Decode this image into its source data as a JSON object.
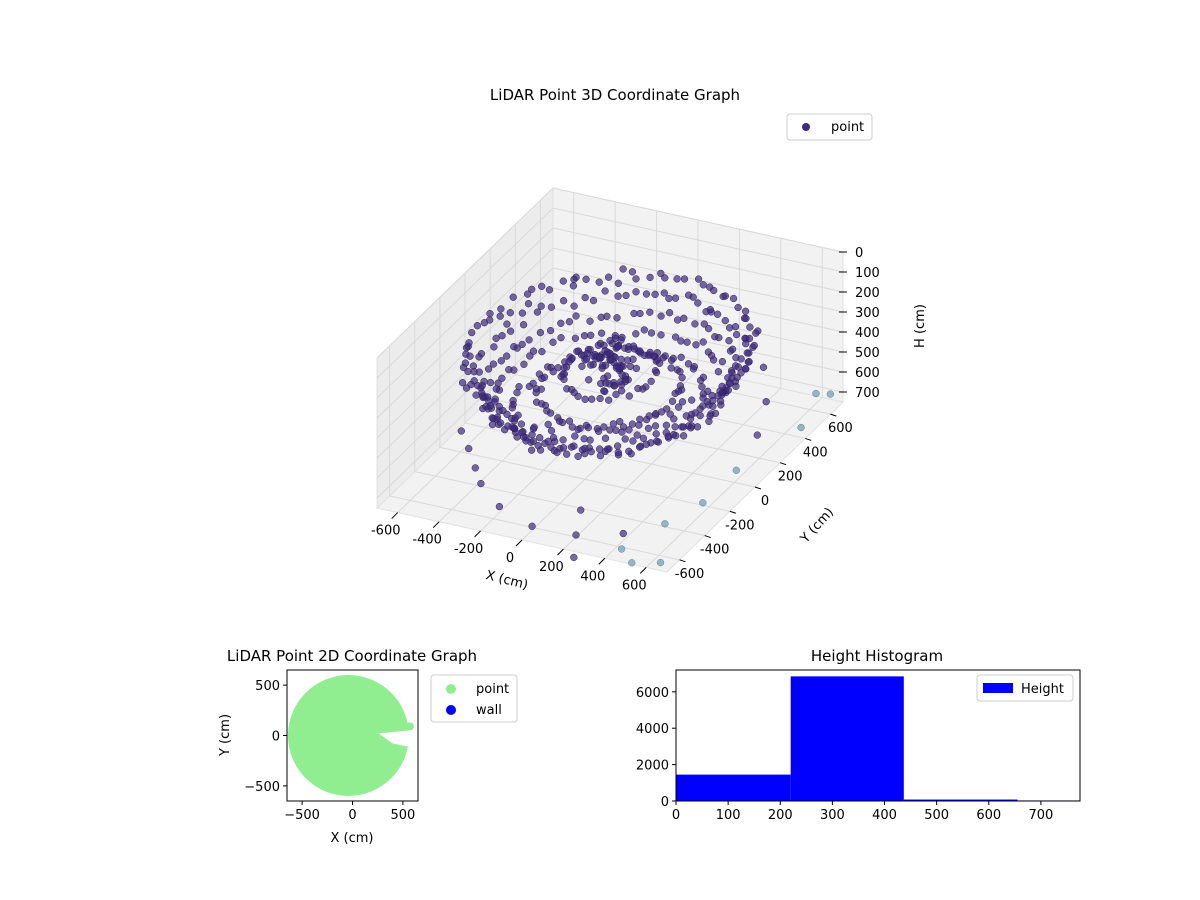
{
  "colors": {
    "point3d": "#3d2a7a",
    "point3d_light": "#6f9bb0",
    "point2d": "#90ee90",
    "wall": "#0000ff",
    "hist": "#0000ff",
    "axis": "#000000",
    "grid": "#d9d9d9",
    "pane": "#f2f2f2"
  },
  "chart_data": [
    {
      "type": "scatter",
      "title": "LiDAR Point 3D Coordinate Graph",
      "xlabel": "X (cm)",
      "ylabel": "Y (cm)",
      "zlabel": "H (cm)",
      "xlim": [
        -700,
        700
      ],
      "ylim": [
        -700,
        700
      ],
      "zlim": [
        750,
        0
      ],
      "z_inverted": true,
      "x_ticks": [
        "-600",
        "-400",
        "-200",
        "0",
        "200",
        "400",
        "600"
      ],
      "y_ticks": [
        "-600",
        "-400",
        "-200",
        "0",
        "200",
        "400",
        "600"
      ],
      "z_ticks": [
        "0",
        "100",
        "200",
        "300",
        "400",
        "500",
        "600",
        "700"
      ],
      "legend": [
        "point"
      ],
      "legend_position": "top-right",
      "grid": true,
      "series": [
        {
          "name": "point",
          "description_rings": [
            {
              "radius": 600,
              "height": 230,
              "count": 90
            },
            {
              "radius": 560,
              "height": 300,
              "count": 80
            },
            {
              "radius": 520,
              "height": 380,
              "count": 75
            },
            {
              "radius": 480,
              "height": 440,
              "count": 70
            },
            {
              "radius": 400,
              "height": 480,
              "count": 60
            },
            {
              "radius": 300,
              "height": 420,
              "count": 50
            },
            {
              "radius": 200,
              "height": 330,
              "count": 40
            }
          ],
          "center_points": [
            [
              0,
              0,
              200
            ],
            [
              20,
              -30,
              250
            ],
            [
              -40,
              20,
              300
            ],
            [
              50,
              40,
              320
            ],
            [
              -20,
              -60,
              350
            ],
            [
              80,
              -20,
              280
            ],
            [
              -70,
              -40,
              260
            ],
            [
              30,
              70,
              380
            ],
            [
              -50,
              60,
              330
            ],
            [
              10,
              10,
              420
            ]
          ],
          "scattered_points": [
            [
              -500,
              -300,
              650
            ],
            [
              -350,
              -450,
              700
            ],
            [
              -200,
              -550,
              720
            ],
            [
              0,
              -620,
              730
            ],
            [
              200,
              -600,
              740
            ],
            [
              380,
              -520,
              740
            ],
            [
              520,
              -420,
              720
            ],
            [
              600,
              -250,
              700
            ],
            [
              640,
              -50,
              650
            ],
            [
              620,
              150,
              600
            ],
            [
              560,
              320,
              550
            ],
            [
              450,
              480,
              500
            ],
            [
              300,
              580,
              450
            ],
            [
              100,
              640,
              400
            ],
            [
              -120,
              630,
              350
            ],
            [
              -300,
              560,
              300
            ],
            [
              -450,
              450,
              280
            ],
            [
              -580,
              300,
              260
            ],
            [
              -640,
              100,
              250
            ],
            [
              -620,
              -100,
              270
            ],
            [
              -560,
              -260,
              600
            ],
            [
              -420,
              -380,
              680
            ],
            [
              150,
              -480,
              700
            ],
            [
              420,
              -600,
              760
            ],
            [
              620,
              -620,
              770
            ],
            [
              680,
              400,
              700
            ],
            [
              700,
              600,
              650
            ],
            [
              600,
              650,
              700
            ],
            [
              500,
              -650,
              780
            ],
            [
              250,
              -700,
              780
            ]
          ]
        }
      ]
    },
    {
      "type": "scatter",
      "title": "LiDAR Point 2D Coordinate Graph",
      "xlabel": "X (cm)",
      "ylabel": "Y (cm)",
      "xlim": [
        -650,
        650
      ],
      "ylim": [
        -650,
        650
      ],
      "x_ticks": [
        "−500",
        "0",
        "500"
      ],
      "y_ticks": [
        "500",
        "0",
        "−500"
      ],
      "legend": [
        "point",
        "wall"
      ],
      "legend_position": "outside-right",
      "series": [
        {
          "name": "point",
          "shape": "filled-disk",
          "center": [
            -40,
            0
          ],
          "radius": 600
        },
        {
          "name": "wall",
          "points": []
        }
      ]
    },
    {
      "type": "bar",
      "title": "Height Histogram",
      "xlabel": "",
      "ylabel": "",
      "xlim": [
        0,
        775
      ],
      "ylim": [
        0,
        7200
      ],
      "x_ticks": [
        "0",
        "100",
        "200",
        "300",
        "400",
        "500",
        "600",
        "700"
      ],
      "y_ticks": [
        "0",
        "2000",
        "4000",
        "6000"
      ],
      "legend": [
        "Height"
      ],
      "legend_position": "top-right",
      "bins": [
        {
          "from": 0,
          "to": 220,
          "count": 1450
        },
        {
          "from": 220,
          "to": 437,
          "count": 6850
        },
        {
          "from": 437,
          "to": 655,
          "count": 80
        },
        {
          "from": 655,
          "to": 775,
          "count": 30
        }
      ]
    }
  ]
}
